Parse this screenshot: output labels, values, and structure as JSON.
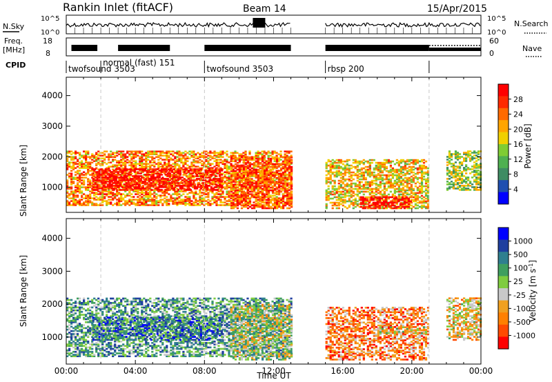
{
  "header": {
    "station": "Rankin Inlet (fitACF)",
    "beam": "Beam 14",
    "date": "15/Apr/2015"
  },
  "ops_panels": {
    "nsky": {
      "left_label": "N.Sky",
      "right_label": "N.Search",
      "left_ticks": [
        "10^5",
        "10^0"
      ],
      "right_ticks": [
        "10^5",
        "10^0"
      ]
    },
    "freq": {
      "left_label_line1": "Freq.",
      "left_label_line2": "[MHz]",
      "right_label": "Nave",
      "left_ticks": [
        "18",
        "8"
      ],
      "right_ticks": [
        "60",
        "0"
      ]
    },
    "cpid": {
      "label": "CPID",
      "segments": [
        {
          "name": "twofsound 3503",
          "start_h": 0.0,
          "end_h": 2.0
        },
        {
          "name": "normal (fast) 151",
          "start_h": 2.0,
          "end_h": 8.0
        },
        {
          "name": "twofsound 3503",
          "start_h": 8.0,
          "end_h": 13.0
        },
        {
          "name": "rbsp 200",
          "start_h": 15.0,
          "end_h": 21.0
        }
      ]
    }
  },
  "colors": {
    "power_scale": [
      "#0000ff",
      "#1f4fb0",
      "#3f8c63",
      "#4fb050",
      "#7fcc33",
      "#f0d000",
      "#ffa500",
      "#ff6a00",
      "#ff2a00",
      "#ff0000"
    ],
    "velocity_scale": [
      "#0000ff",
      "#1f3f9f",
      "#2f7f8f",
      "#3f9f5f",
      "#7fcc3f",
      "#c8c8c8",
      "#f0a020",
      "#ff8000",
      "#ff4a00",
      "#ff0000"
    ]
  },
  "chart_data": [
    {
      "type": "heatmap",
      "name": "power",
      "xlabel": "",
      "ylabel": "Slant Range [km]",
      "xlim": [
        0,
        24
      ],
      "ylim": [
        180,
        4600
      ],
      "x_ticks": [],
      "y_ticks": [
        "1000",
        "2000",
        "3000",
        "4000"
      ],
      "colorbar": {
        "label": "Power [dB]",
        "ticks": [
          "4",
          "8",
          "12",
          "16",
          "20",
          "24",
          "28"
        ],
        "range": [
          0,
          30
        ]
      },
      "regions": [
        {
          "t0": 0.0,
          "t1": 13.0,
          "r0": 400,
          "r1": 2200,
          "level": 0.7
        },
        {
          "t0": 1.5,
          "t1": 9.0,
          "r0": 900,
          "r1": 1600,
          "level": 0.95
        },
        {
          "t0": 9.5,
          "t1": 13.0,
          "r0": 300,
          "r1": 2000,
          "level": 0.8
        },
        {
          "t0": 15.0,
          "t1": 21.0,
          "r0": 300,
          "r1": 1900,
          "level": 0.6
        },
        {
          "t0": 17.0,
          "t1": 20.0,
          "r0": 300,
          "r1": 700,
          "level": 1.0
        },
        {
          "t0": 22.0,
          "t1": 24.0,
          "r0": 900,
          "r1": 2200,
          "level": 0.45
        }
      ]
    },
    {
      "type": "heatmap",
      "name": "velocity",
      "xlabel": "Time UT",
      "ylabel": "Slant Range [km]",
      "xlim": [
        0,
        24
      ],
      "ylim": [
        180,
        4600
      ],
      "x_ticks": [
        "00:00",
        "04:00",
        "08:00",
        "12:00",
        "16:00",
        "20:00",
        "00:00"
      ],
      "y_ticks": [
        "1000",
        "2000",
        "3000",
        "4000"
      ],
      "colorbar": {
        "label": "Velocity [m s^-1]",
        "ticks": [
          "1000",
          "500",
          "100",
          "25",
          "-25",
          "-100",
          "-500",
          "-1000"
        ]
      },
      "regions": [
        {
          "t0": 0.0,
          "t1": 13.0,
          "r0": 400,
          "r1": 2200,
          "level": 0.35
        },
        {
          "t0": 1.5,
          "t1": 9.0,
          "r0": 900,
          "r1": 1600,
          "level": 0.25
        },
        {
          "t0": 9.5,
          "t1": 13.0,
          "r0": 300,
          "r1": 2000,
          "level": 0.5
        },
        {
          "t0": 15.0,
          "t1": 21.0,
          "r0": 300,
          "r1": 1900,
          "level": 0.75
        },
        {
          "t0": 18.0,
          "t1": 21.0,
          "r0": 1100,
          "r1": 1300,
          "level": 0.55
        },
        {
          "t0": 22.0,
          "t1": 24.0,
          "r0": 900,
          "r1": 2200,
          "level": 0.6
        }
      ]
    }
  ]
}
